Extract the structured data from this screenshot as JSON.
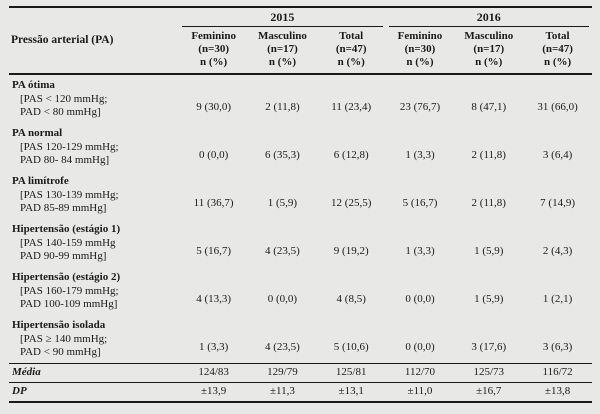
{
  "colors": {
    "background": "#e8e8e6",
    "text": "#1a1a1a",
    "rule": "#1a1a1a"
  },
  "table": {
    "row_header_label": "Pressão arterial (PA)",
    "year_groups": [
      {
        "label": "2015",
        "columns": [
          {
            "title": "Feminino",
            "n": "(n=30)",
            "stat": "n (%)"
          },
          {
            "title": "Masculino",
            "n": "(n=17)",
            "stat": "n (%)"
          },
          {
            "title": "Total",
            "n": "(n=47)",
            "stat": "n (%)"
          }
        ]
      },
      {
        "label": "2016",
        "columns": [
          {
            "title": "Feminino",
            "n": "(n=30)",
            "stat": "n (%)"
          },
          {
            "title": "Masculino",
            "n": "(n=17)",
            "stat": "n (%)"
          },
          {
            "title": "Total",
            "n": "(n=47)",
            "stat": "n (%)"
          }
        ]
      }
    ],
    "rows": [
      {
        "type": "section",
        "label": "PA ótima"
      },
      {
        "type": "data",
        "label_lines": [
          "[PAS < 120 mmHg;",
          "PAD < 80 mmHg]"
        ],
        "values": [
          "9 (30,0)",
          "2 (11,8)",
          "11 (23,4)",
          "23 (76,7)",
          "8 (47,1)",
          "31 (66,0)"
        ]
      },
      {
        "type": "section",
        "label": "PA normal"
      },
      {
        "type": "data",
        "label_lines": [
          "[PAS 120-129 mmHg;",
          "PAD 80- 84 mmHg]"
        ],
        "values": [
          "0 (0,0)",
          "6 (35,3)",
          "6 (12,8)",
          "1 (3,3)",
          "2 (11,8)",
          "3 (6,4)"
        ]
      },
      {
        "type": "section",
        "label": "PA limítrofe"
      },
      {
        "type": "data",
        "label_lines": [
          "[PAS 130-139 mmHg;",
          "PAD 85-89 mmHg]"
        ],
        "values": [
          "11 (36,7)",
          "1 (5,9)",
          "12 (25,5)",
          "5 (16,7)",
          "2 (11,8)",
          "7 (14,9)"
        ]
      },
      {
        "type": "section",
        "label": "Hipertensão (estágio 1)"
      },
      {
        "type": "data",
        "label_lines": [
          "[PAS 140-159 mmHg",
          "PAD 90-99 mmHg]"
        ],
        "values": [
          "5 (16,7)",
          "4 (23,5)",
          "9 (19,2)",
          "1 (3,3)",
          "1 (5,9)",
          "2 (4,3)"
        ]
      },
      {
        "type": "section",
        "label": "Hipertensão (estágio 2)"
      },
      {
        "type": "data",
        "label_lines": [
          "[PAS 160-179 mmHg;",
          "PAD 100-109 mmHg]"
        ],
        "values": [
          "4 (13,3)",
          "0 (0,0)",
          "4 (8,5)",
          "0 (0,0)",
          "1 (5,9)",
          "1 (2,1)"
        ]
      },
      {
        "type": "section",
        "label": "Hipertensão isolada"
      },
      {
        "type": "data",
        "label_lines": [
          "[PAS ≥ 140 mmHg;",
          "PAD < 90 mmHg]"
        ],
        "values": [
          "1 (3,3)",
          "4 (23,5)",
          "5 (10,6)",
          "0 (0,0)",
          "3 (17,6)",
          "3 (6,3)"
        ]
      },
      {
        "type": "summary",
        "label": "Média",
        "values": [
          "124/83",
          "129/79",
          "125/81",
          "112/70",
          "125/73",
          "116/72"
        ]
      },
      {
        "type": "summary",
        "label": "DP",
        "values": [
          "±13,9",
          "±11,3",
          "±13,1",
          "±11,0",
          "±16,7",
          "±13,8"
        ]
      }
    ]
  }
}
